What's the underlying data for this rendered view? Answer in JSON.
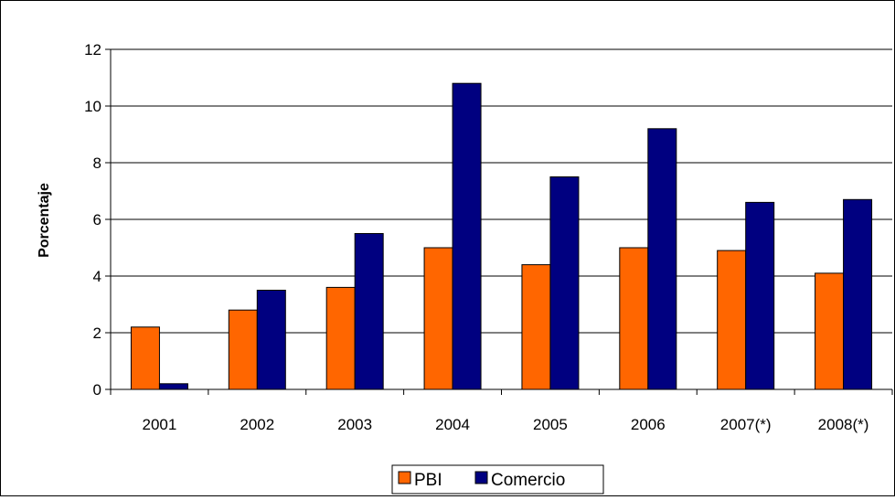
{
  "chart_data": {
    "type": "bar",
    "title": "",
    "xlabel": "",
    "ylabel": "Porcentaje",
    "categories": [
      "2001",
      "2002",
      "2003",
      "2004",
      "2005",
      "2006",
      "2007(*)",
      "2008(*)"
    ],
    "series": [
      {
        "name": "PBI",
        "color": "#FF6600",
        "values": [
          2.2,
          2.8,
          3.6,
          5.0,
          4.4,
          5.0,
          4.9,
          4.1
        ]
      },
      {
        "name": "Comercio",
        "color": "#000080",
        "values": [
          0.2,
          3.5,
          5.5,
          10.8,
          7.5,
          9.2,
          6.6,
          6.7
        ]
      }
    ],
    "ylim": [
      0,
      12
    ],
    "yticks": [
      0,
      2,
      4,
      6,
      8,
      10,
      12
    ],
    "grid": true,
    "legend_position": "bottom"
  }
}
